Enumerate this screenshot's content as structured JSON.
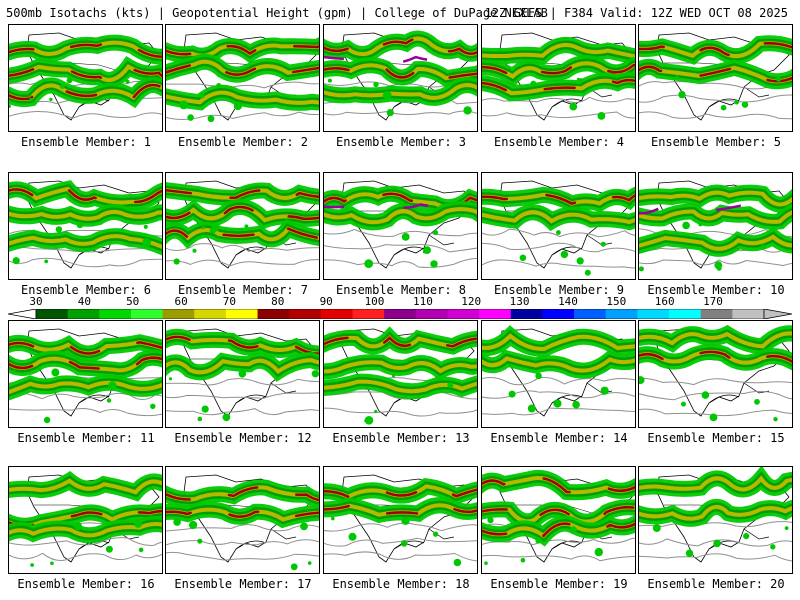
{
  "header": {
    "left": "500mb Isotachs (kts) | Geopotential Height (gpm) | College of DuPage NEXLAB",
    "right": "12Z GEFS | F384 Valid: 12Z WED OCT 08 2025"
  },
  "legend": {
    "labels": [
      "30",
      "40",
      "50",
      "60",
      "70",
      "80",
      "90",
      "100",
      "110",
      "120",
      "130",
      "140",
      "150",
      "160",
      "170"
    ],
    "colors": [
      "#005500",
      "#00a000",
      "#00d800",
      "#2fff2f",
      "#9c9c00",
      "#d6d600",
      "#ffff00",
      "#8b0000",
      "#b00000",
      "#e00000",
      "#ff2020",
      "#8b008b",
      "#b000b0",
      "#d000d0",
      "#ff00ff",
      "#0000a0",
      "#0000ff",
      "#0060ff",
      "#00a0ff",
      "#00d8ff",
      "#00ffff",
      "#808080",
      "#c0c0c0"
    ]
  },
  "members": [
    {
      "label": "Ensemble Member: 1"
    },
    {
      "label": "Ensemble Member: 2"
    },
    {
      "label": "Ensemble Member: 3"
    },
    {
      "label": "Ensemble Member: 4"
    },
    {
      "label": "Ensemble Member: 5"
    },
    {
      "label": "Ensemble Member: 6"
    },
    {
      "label": "Ensemble Member: 7"
    },
    {
      "label": "Ensemble Member: 8"
    },
    {
      "label": "Ensemble Member: 9"
    },
    {
      "label": "Ensemble Member: 10"
    },
    {
      "label": "Ensemble Member: 11"
    },
    {
      "label": "Ensemble Member: 12"
    },
    {
      "label": "Ensemble Member: 13"
    },
    {
      "label": "Ensemble Member: 14"
    },
    {
      "label": "Ensemble Member: 15"
    },
    {
      "label": "Ensemble Member: 16"
    },
    {
      "label": "Ensemble Member: 17"
    },
    {
      "label": "Ensemble Member: 18"
    },
    {
      "label": "Ensemble Member: 19"
    },
    {
      "label": "Ensemble Member: 20"
    }
  ],
  "colors": {
    "jet_light": "#00c800",
    "jet_mid": "#00a000",
    "jet_core": "#b8b800",
    "jet_max": "#a00000",
    "jet_extreme": "#9c009c",
    "contour": "#909090",
    "coast": "#000000"
  }
}
